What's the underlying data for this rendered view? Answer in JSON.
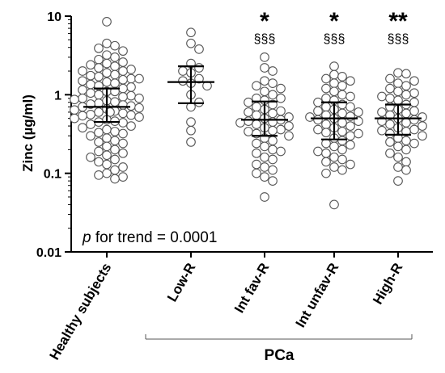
{
  "chart_data": {
    "type": "scatter",
    "ylabel": "Zinc (µg/ml)",
    "yscale": "log",
    "ylim": [
      0.01,
      10
    ],
    "yticks": [
      "0.01",
      "0.1",
      "1",
      "10"
    ],
    "categories": [
      "Healthy subjects",
      "Low-R",
      "Int fav-R",
      "Int unfav-R",
      "High-R"
    ],
    "group_label": "PCa",
    "group_members": [
      "Low-R",
      "Int fav-R",
      "Int unfav-R",
      "High-R"
    ],
    "annotation": {
      "italic": "p",
      "text": " for trend = 0.0001"
    },
    "significance": [
      {
        "category": "Int fav-R",
        "stars": "*",
        "sections": "§§§"
      },
      {
        "category": "Int unfav-R",
        "stars": "*",
        "sections": "§§§"
      },
      {
        "category": "High-R",
        "stars": "**",
        "sections": "§§§"
      }
    ],
    "summary": [
      {
        "category": "Healthy subjects",
        "median": 0.7,
        "q1": 0.45,
        "q3": 1.2
      },
      {
        "category": "Low-R",
        "median": 1.45,
        "q1": 0.78,
        "q3": 2.3
      },
      {
        "category": "Int fav-R",
        "median": 0.48,
        "q1": 0.3,
        "q3": 0.82
      },
      {
        "category": "Int unfav-R",
        "median": 0.5,
        "q1": 0.27,
        "q3": 0.8
      },
      {
        "category": "High-R",
        "median": 0.5,
        "q1": 0.31,
        "q3": 0.75
      }
    ],
    "series": [
      {
        "category": "Healthy subjects",
        "values": [
          8.5,
          4.5,
          4.2,
          3.9,
          3.6,
          3.2,
          3.0,
          2.8,
          2.6,
          2.5,
          2.4,
          2.3,
          2.2,
          2.1,
          2.0,
          1.9,
          1.8,
          1.75,
          1.7,
          1.6,
          1.55,
          1.5,
          1.45,
          1.4,
          1.35,
          1.3,
          1.25,
          1.2,
          1.15,
          1.1,
          1.05,
          1.0,
          0.97,
          0.94,
          0.9,
          0.87,
          0.84,
          0.81,
          0.78,
          0.76,
          0.74,
          0.72,
          0.7,
          0.68,
          0.66,
          0.64,
          0.62,
          0.6,
          0.58,
          0.56,
          0.54,
          0.52,
          0.5,
          0.48,
          0.46,
          0.44,
          0.42,
          0.4,
          0.38,
          0.36,
          0.34,
          0.32,
          0.3,
          0.28,
          0.26,
          0.24,
          0.22,
          0.2,
          0.19,
          0.18,
          0.17,
          0.16,
          0.15,
          0.14,
          0.13,
          0.12,
          0.11,
          0.1,
          0.095,
          0.09,
          0.085,
          0.6,
          0.9,
          1.1,
          0.45,
          0.33,
          0.25,
          1.6,
          2.0,
          0.55
        ]
      },
      {
        "category": "Low-R",
        "values": [
          6.2,
          4.5,
          3.8,
          2.5,
          2.2,
          2.0,
          1.9,
          1.6,
          1.5,
          1.4,
          1.3,
          1.0,
          0.8,
          0.7,
          0.45,
          0.35,
          0.25
        ]
      },
      {
        "category": "Int fav-R",
        "values": [
          3.0,
          2.2,
          2.0,
          1.5,
          1.4,
          1.3,
          1.2,
          1.1,
          1.0,
          0.9,
          0.85,
          0.8,
          0.75,
          0.7,
          0.65,
          0.6,
          0.58,
          0.55,
          0.52,
          0.5,
          0.48,
          0.46,
          0.44,
          0.42,
          0.4,
          0.38,
          0.36,
          0.34,
          0.32,
          0.3,
          0.28,
          0.26,
          0.24,
          0.22,
          0.2,
          0.18,
          0.16,
          0.15,
          0.13,
          0.12,
          0.11,
          0.1,
          0.09,
          0.08,
          0.05,
          0.35,
          0.62,
          0.9,
          0.19,
          0.45
        ]
      },
      {
        "category": "Int unfav-R",
        "values": [
          2.3,
          1.8,
          1.7,
          1.6,
          1.5,
          1.4,
          1.3,
          1.2,
          1.1,
          1.0,
          0.95,
          0.9,
          0.85,
          0.8,
          0.75,
          0.7,
          0.65,
          0.62,
          0.6,
          0.58,
          0.55,
          0.52,
          0.5,
          0.48,
          0.46,
          0.44,
          0.42,
          0.4,
          0.38,
          0.36,
          0.34,
          0.32,
          0.3,
          0.28,
          0.26,
          0.24,
          0.22,
          0.2,
          0.19,
          0.18,
          0.16,
          0.15,
          0.14,
          0.13,
          0.12,
          0.11,
          0.1,
          0.04,
          0.53,
          0.33,
          0.7,
          0.23
        ]
      },
      {
        "category": "High-R",
        "values": [
          1.9,
          1.85,
          1.6,
          1.5,
          1.4,
          1.3,
          1.2,
          1.1,
          1.0,
          0.95,
          0.9,
          0.85,
          0.8,
          0.75,
          0.7,
          0.65,
          0.6,
          0.58,
          0.55,
          0.52,
          0.5,
          0.48,
          0.46,
          0.44,
          0.42,
          0.4,
          0.38,
          0.36,
          0.34,
          0.32,
          0.3,
          0.28,
          0.26,
          0.24,
          0.22,
          0.2,
          0.18,
          0.16,
          0.14,
          0.12,
          0.11,
          0.08,
          0.62,
          0.35,
          0.25,
          1.05
        ]
      }
    ]
  }
}
